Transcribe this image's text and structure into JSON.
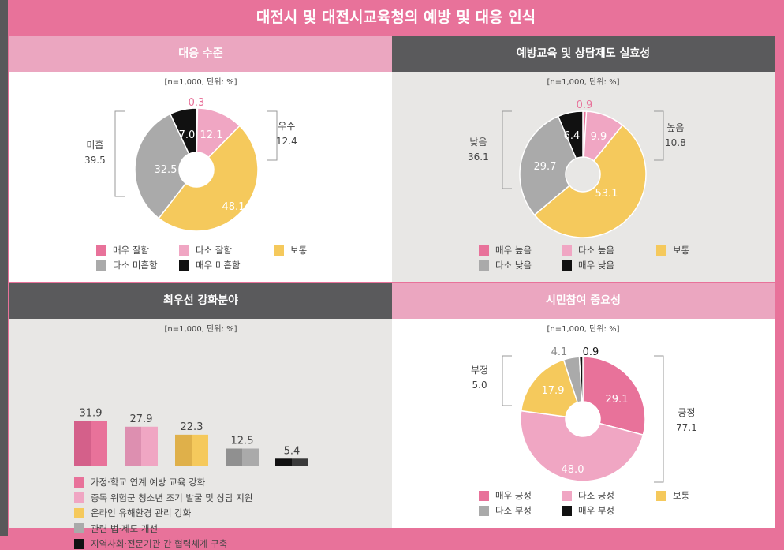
{
  "title": "대전시 및 대전시교육청의 예방 및 대응 인식",
  "colors": {
    "very_pos": "#e8729a",
    "some_pos": "#f0a6c3",
    "neutral": "#f5c95c",
    "some_neg": "#aaaaaa",
    "very_neg": "#111111"
  },
  "chart_data": [
    {
      "type": "pie",
      "title": "대응 수준",
      "note": "[n=1,000, 단위: %]",
      "categories": [
        "매우 잘함",
        "다소 잘함",
        "보통",
        "다소 미흡함",
        "매우 미흡함"
      ],
      "values": [
        0.3,
        12.1,
        48.1,
        32.5,
        7.0
      ],
      "labels": [
        "0.3",
        "12.1",
        "48.1",
        "32.5",
        "7.0"
      ],
      "groups": [
        {
          "label": "우수",
          "value": "12.4"
        },
        {
          "label": "미흡",
          "value": "39.5"
        }
      ]
    },
    {
      "type": "pie",
      "title": "예방교육 및 상담제도 실효성",
      "note": "[n=1,000, 단위: %]",
      "categories": [
        "매우 높음",
        "다소 높음",
        "보통",
        "다소 낮음",
        "매우 낮음"
      ],
      "values": [
        0.9,
        9.9,
        53.1,
        29.7,
        6.4
      ],
      "labels": [
        "0.9",
        "9.9",
        "53.1",
        "29.7",
        "6.4"
      ],
      "groups": [
        {
          "label": "높음",
          "value": "10.8"
        },
        {
          "label": "낮음",
          "value": "36.1"
        }
      ]
    },
    {
      "type": "bar",
      "title": "최우선 강화분야",
      "note": "[n=1,000, 단위: %]",
      "categories": [
        "가정·학교 연계 예방 교육 강화",
        "중독 위험군 청소년 조기 발굴 및 상담 지원",
        "온라인 유해환경 관리 강화",
        "관련 법·제도 개선",
        "지역사회·전문기관 간 협력체계 구축"
      ],
      "values": [
        31.9,
        27.9,
        22.3,
        12.5,
        5.4
      ],
      "labels": [
        "31.9",
        "27.9",
        "22.3",
        "12.5",
        "5.4"
      ]
    },
    {
      "type": "pie",
      "title": "시민참여 중요성",
      "note": "[n=1,000, 단위: %]",
      "categories": [
        "매우 긍정",
        "다소 긍정",
        "보통",
        "다소 부정",
        "매우 부정"
      ],
      "values": [
        29.1,
        48.0,
        17.9,
        4.1,
        0.9
      ],
      "labels": [
        "29.1",
        "48.0",
        "17.9",
        "4.1",
        "0.9"
      ],
      "groups": [
        {
          "label": "긍정",
          "value": "77.1"
        },
        {
          "label": "부정",
          "value": "5.0"
        }
      ]
    }
  ]
}
